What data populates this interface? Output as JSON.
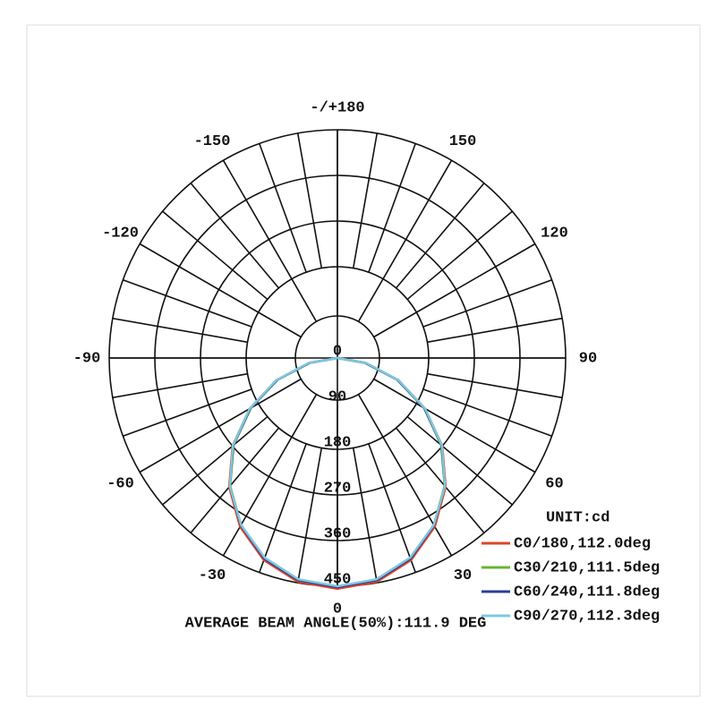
{
  "chart_data": {
    "type": "polar",
    "unit_label": "UNIT:cd",
    "annotation": "AVERAGE BEAM ANGLE(50%):111.9 DEG",
    "x": [
      -90,
      -80,
      -70,
      -60,
      -50,
      -40,
      -30,
      -20,
      -10,
      0,
      10,
      20,
      30,
      40,
      50,
      60,
      70,
      80,
      90
    ],
    "rlim": [
      0,
      450
    ],
    "rticks": [
      0,
      90,
      180,
      270,
      360,
      450
    ],
    "angle_ticks": [
      {
        "value": 180,
        "label": "-/+180"
      },
      -150,
      -120,
      -90,
      -60,
      -30,
      0,
      30,
      60,
      90,
      120,
      150
    ],
    "series": [
      {
        "name": "C0/180,112.0deg",
        "color": "#e0442a",
        "values": [
          0,
          57,
          128,
          200,
          270,
          332,
          384,
          424,
          448,
          455,
          448,
          424,
          384,
          332,
          270,
          200,
          128,
          57,
          0
        ]
      },
      {
        "name": "C30/210,111.5deg",
        "color": "#6ab42f",
        "values": [
          0,
          55,
          125,
          197,
          267,
          329,
          380,
          420,
          444,
          451,
          444,
          420,
          380,
          329,
          267,
          197,
          125,
          55,
          0
        ]
      },
      {
        "name": "C60/240,111.8deg",
        "color": "#2b3d9a",
        "values": [
          0,
          56,
          126,
          198,
          268,
          330,
          381,
          421,
          445,
          452,
          445,
          421,
          381,
          330,
          268,
          198,
          126,
          56,
          0
        ]
      },
      {
        "name": "C90/270,112.3deg",
        "color": "#7ec8e0",
        "values": [
          0,
          58,
          128,
          200,
          269,
          330,
          380,
          419,
          443,
          450,
          443,
          419,
          380,
          330,
          269,
          200,
          128,
          58,
          0
        ]
      }
    ]
  }
}
